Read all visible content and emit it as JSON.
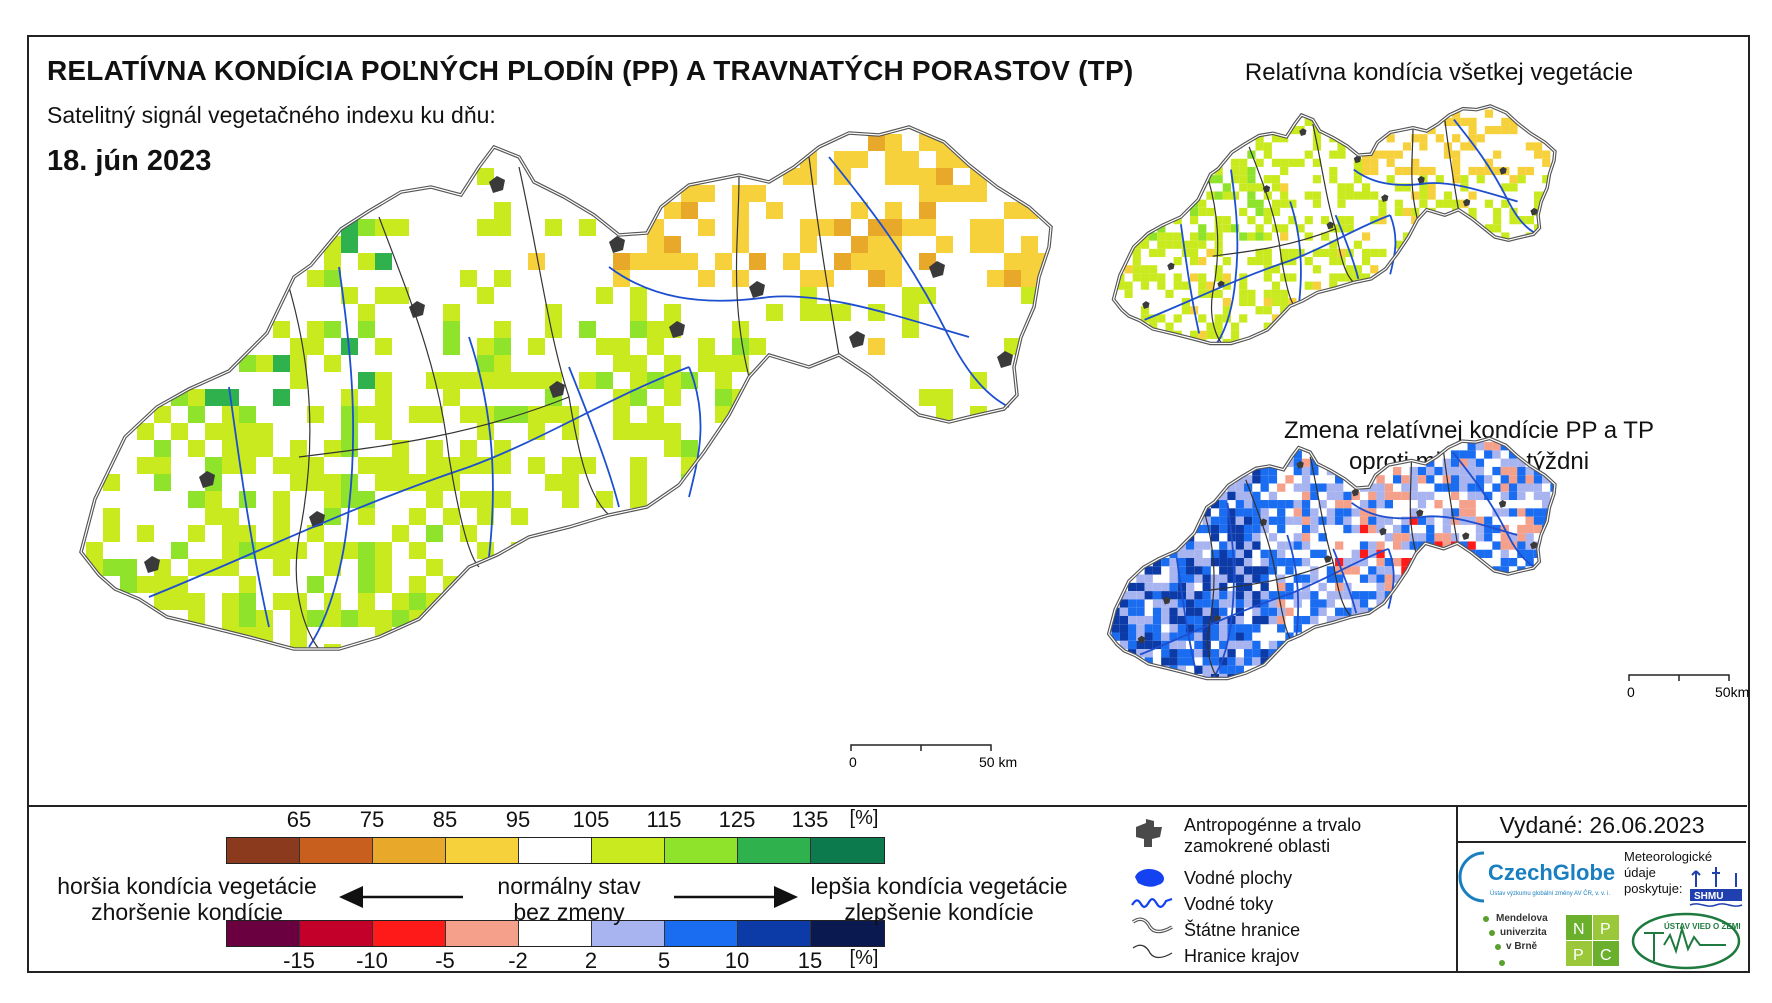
{
  "title": "RELATÍVNA KONDÍCIA POĽNÝCH PLODÍN (PP) A TRAVNATÝCH PORASTOV (TP)",
  "subtitle": "Satelitný signál vegetačného indexu ku dňu:",
  "date": "18. jún 2023",
  "inset1_title": "Relatívna kondícia všetkej vegetácie",
  "inset2_title_line1": "Zmena relatívnej kondície PP a TP",
  "inset2_title_line2": "oproti minulému týždni",
  "main_scalebar": {
    "start": "0",
    "end": "50 km"
  },
  "inset_scalebar": {
    "start": "0",
    "end": "50km"
  },
  "legend_condition": {
    "ticks": [
      "65",
      "75",
      "85",
      "95",
      "105",
      "115",
      "125",
      "135"
    ],
    "unit": "[%]",
    "colors": [
      "#8b3a1e",
      "#c95f1e",
      "#e8a82a",
      "#f6d13b",
      "#ffffff",
      "#c9ea1f",
      "#8fe32a",
      "#2fb24e",
      "#0c7a4c"
    ]
  },
  "legend_change": {
    "ticks": [
      "-15",
      "-10",
      "-5",
      "-2",
      "2",
      "5",
      "10",
      "15"
    ],
    "unit": "[%]",
    "colors": [
      "#6b0040",
      "#c2002a",
      "#ff1a1a",
      "#f5a08a",
      "#ffffff",
      "#a8b4f0",
      "#1a6cf0",
      "#0c3aa6",
      "#0a1a50"
    ]
  },
  "labels": {
    "worse_line1": "horšia kondícia vegetácie",
    "worse_line2": "zhoršenie kondície",
    "normal_line1": "normálny stav",
    "normal_line2": "bez zmeny",
    "better_line1": "lepšia kondícia vegetácie",
    "better_line2": "zlepšenie kondície"
  },
  "map_key": [
    {
      "icon": "urban-area-icon",
      "label_line1": "Antropogénne a trvalo",
      "label_line2": "zamokrené oblasti"
    },
    {
      "icon": "water-body-icon",
      "label_line1": "Vodné plochy",
      "label_line2": ""
    },
    {
      "icon": "river-icon",
      "label_line1": "Vodné toky",
      "label_line2": ""
    },
    {
      "icon": "state-border-icon",
      "label_line1": "Štátne hranice",
      "label_line2": ""
    },
    {
      "icon": "region-border-icon",
      "label_line1": "Hranice krajov",
      "label_line2": ""
    }
  ],
  "issued": "Vydané: 26.06.2023",
  "logos": {
    "czechglobe": "CzechGlobe",
    "czechglobe_sub": "Ústav výzkumu globální změny AV ČR, v. v. i.",
    "shmu_line1": "Meteorologické",
    "shmu_line2": "údaje",
    "shmu_line3": "poskytuje:",
    "shmu": "SHMU",
    "mendel_line1": "Mendelova",
    "mendel_line2": "univerzita",
    "mendel_line3": "v Brně",
    "nppc": [
      "N",
      "P",
      "P",
      "C"
    ],
    "uvz": "ÚSTAV VIED O ZEMI"
  }
}
